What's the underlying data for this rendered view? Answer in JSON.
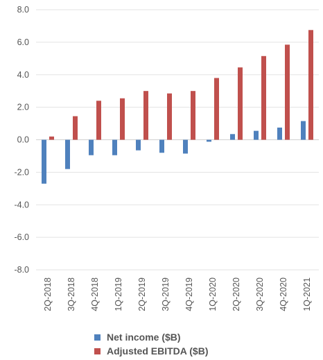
{
  "chart_data": {
    "type": "bar",
    "title": "",
    "xlabel": "",
    "ylabel": "",
    "ylim": [
      -8.0,
      8.0
    ],
    "yticks": [
      "8.0",
      "6.0",
      "4.0",
      "2.0",
      "0.0",
      "-2.0",
      "-4.0",
      "-6.0",
      "-8.0"
    ],
    "grid": "horizontal",
    "legend_position": "bottom",
    "categories": [
      "2Q-2018",
      "3Q-2018",
      "4Q-2018",
      "1Q-2019",
      "2Q-2019",
      "3Q-2019",
      "4Q-2019",
      "1Q-2020",
      "2Q-2020",
      "3Q-2020",
      "4Q-2020",
      "1Q-2021"
    ],
    "series": [
      {
        "name": "Net income ($B)",
        "color": "#4F81BD",
        "values": [
          -2.7,
          -1.8,
          -0.95,
          -0.95,
          -0.65,
          -0.8,
          -0.85,
          -0.12,
          0.35,
          0.55,
          0.75,
          1.15
        ]
      },
      {
        "name": "Adjusted EBITDA ($B)",
        "color": "#C0504D",
        "values": [
          0.2,
          1.45,
          2.4,
          2.55,
          3.0,
          2.85,
          3.0,
          3.8,
          4.45,
          5.15,
          5.85,
          6.75
        ]
      }
    ]
  }
}
